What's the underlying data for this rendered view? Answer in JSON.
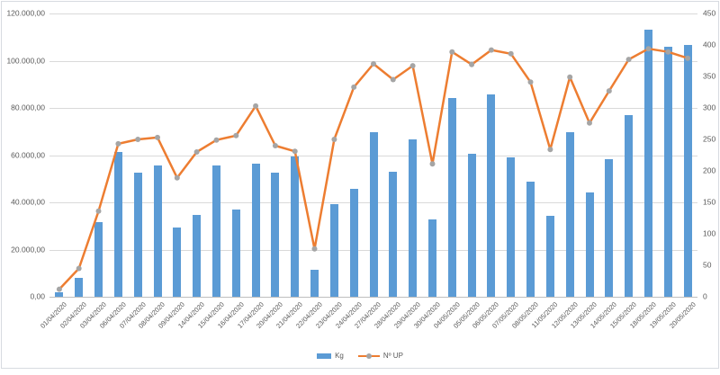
{
  "chart_data": {
    "type": "combo-bar-line",
    "title": "",
    "categories": [
      "01/04/2020",
      "02/04/2020",
      "03/04/2020",
      "06/04/2020",
      "07/04/2020",
      "08/04/2020",
      "09/04/2020",
      "14/04/2020",
      "15/04/2020",
      "16/04/2020",
      "17/04/2020",
      "20/04/2020",
      "21/04/2020",
      "22/04/2020",
      "23/04/2020",
      "24/04/2020",
      "27/04/2020",
      "28/04/2020",
      "29/04/2020",
      "30/04/2020",
      "04/05/2020",
      "05/05/2020",
      "06/05/2020",
      "07/05/2020",
      "08/05/2020",
      "11/05/2020",
      "12/05/2020",
      "13/05/2020",
      "14/05/2020",
      "15/05/2020",
      "18/05/2020",
      "19/05/2020",
      "20/05/2020"
    ],
    "series": [
      {
        "name": "Kg",
        "type": "bar",
        "axis": "left",
        "color": "#5B9BD5",
        "values": [
          2000,
          8000,
          31500,
          61300,
          52400,
          55500,
          29200,
          34600,
          55500,
          37000,
          56400,
          52600,
          59400,
          11500,
          39200,
          45900,
          69900,
          53000,
          66800,
          32600,
          84100,
          60500,
          85600,
          59100,
          48700,
          34300,
          69800,
          44200,
          58200,
          76800,
          113000,
          105800,
          106800
        ]
      },
      {
        "name": "Nº UP",
        "type": "line",
        "axis": "right",
        "color": "#ED7D31",
        "marker_color": "#A5A5A5",
        "values": [
          12,
          45,
          136,
          243,
          250,
          253,
          189,
          230,
          249,
          256,
          303,
          240,
          231,
          76,
          250,
          333,
          370,
          345,
          367,
          211,
          389,
          369,
          392,
          386,
          341,
          234,
          349,
          276,
          327,
          377,
          394,
          389,
          379
        ]
      }
    ],
    "left_axis": {
      "min": 0,
      "max": 120000,
      "step": 20000,
      "tick_labels": [
        "0,00",
        "20.000,00",
        "40.000,00",
        "60.000,00",
        "80.000,00",
        "100.000,00",
        "120.000,00"
      ]
    },
    "right_axis": {
      "min": 0,
      "max": 450,
      "step": 50,
      "tick_labels": [
        "0",
        "50",
        "100",
        "150",
        "200",
        "250",
        "300",
        "350",
        "400",
        "450"
      ]
    },
    "grid": true,
    "legend_position": "bottom",
    "colors": {
      "bar": "#5B9BD5",
      "line": "#ED7D31",
      "marker": "#A5A5A5",
      "gridline": "#D9D9D9",
      "axis_text": "#595959"
    }
  }
}
